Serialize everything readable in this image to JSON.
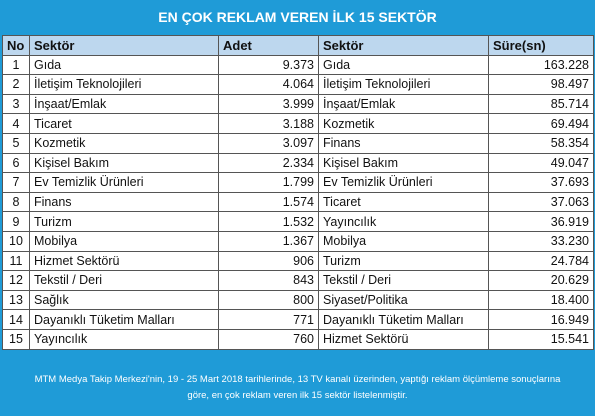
{
  "title": "EN ÇOK REKLAM VEREN İLK 15 SEKTÖR",
  "headers": {
    "no": "No",
    "sektor1": "Sektör",
    "adet": "Adet",
    "sektor2": "Sektör",
    "sure": "Süre(sn)"
  },
  "rows": [
    {
      "no": "1",
      "sektor1": "Gıda",
      "adet": "9.373",
      "sektor2": "Gıda",
      "sure": "163.228"
    },
    {
      "no": "2",
      "sektor1": "İletişim Teknolojileri",
      "adet": "4.064",
      "sektor2": "İletişim Teknolojileri",
      "sure": "98.497"
    },
    {
      "no": "3",
      "sektor1": "İnşaat/Emlak",
      "adet": "3.999",
      "sektor2": "İnşaat/Emlak",
      "sure": "85.714"
    },
    {
      "no": "4",
      "sektor1": "Ticaret",
      "adet": "3.188",
      "sektor2": "Kozmetik",
      "sure": "69.494"
    },
    {
      "no": "5",
      "sektor1": "Kozmetik",
      "adet": "3.097",
      "sektor2": "Finans",
      "sure": "58.354"
    },
    {
      "no": "6",
      "sektor1": "Kişisel Bakım",
      "adet": "2.334",
      "sektor2": "Kişisel Bakım",
      "sure": "49.047"
    },
    {
      "no": "7",
      "sektor1": "Ev Temizlik Ürünleri",
      "adet": "1.799",
      "sektor2": "Ev Temizlik Ürünleri",
      "sure": "37.693"
    },
    {
      "no": "8",
      "sektor1": "Finans",
      "adet": "1.574",
      "sektor2": "Ticaret",
      "sure": "37.063"
    },
    {
      "no": "9",
      "sektor1": "Turizm",
      "adet": "1.532",
      "sektor2": "Yayıncılık",
      "sure": "36.919"
    },
    {
      "no": "10",
      "sektor1": "Mobilya",
      "adet": "1.367",
      "sektor2": "Mobilya",
      "sure": "33.230"
    },
    {
      "no": "11",
      "sektor1": "Hizmet Sektörü",
      "adet": "906",
      "sektor2": "Turizm",
      "sure": "24.784"
    },
    {
      "no": "12",
      "sektor1": "Tekstil / Deri",
      "adet": "843",
      "sektor2": "Tekstil / Deri",
      "sure": "20.629"
    },
    {
      "no": "13",
      "sektor1": "Sağlık",
      "adet": "800",
      "sektor2": "Siyaset/Politika",
      "sure": "18.400"
    },
    {
      "no": "14",
      "sektor1": "Dayanıklı Tüketim Malları",
      "adet": "771",
      "sektor2": "Dayanıklı Tüketim Malları",
      "sure": "16.949"
    },
    {
      "no": "15",
      "sektor1": "Yayıncılık",
      "adet": "760",
      "sektor2": "Hizmet Sektörü",
      "sure": "15.541"
    }
  ],
  "footer": {
    "line1": "MTM Medya Takip Merkezi'nin, 19 - 25 Mart 2018 tarihlerinde, 13 TV kanalı üzerinden,  yaptığı reklam ölçümleme sonuçlarına",
    "line2": "göre, en çok reklam veren ilk 15 sektör  listelenmiştir."
  },
  "colors": {
    "background": "#1f9bd7",
    "header_fill": "#bdd7ee"
  }
}
